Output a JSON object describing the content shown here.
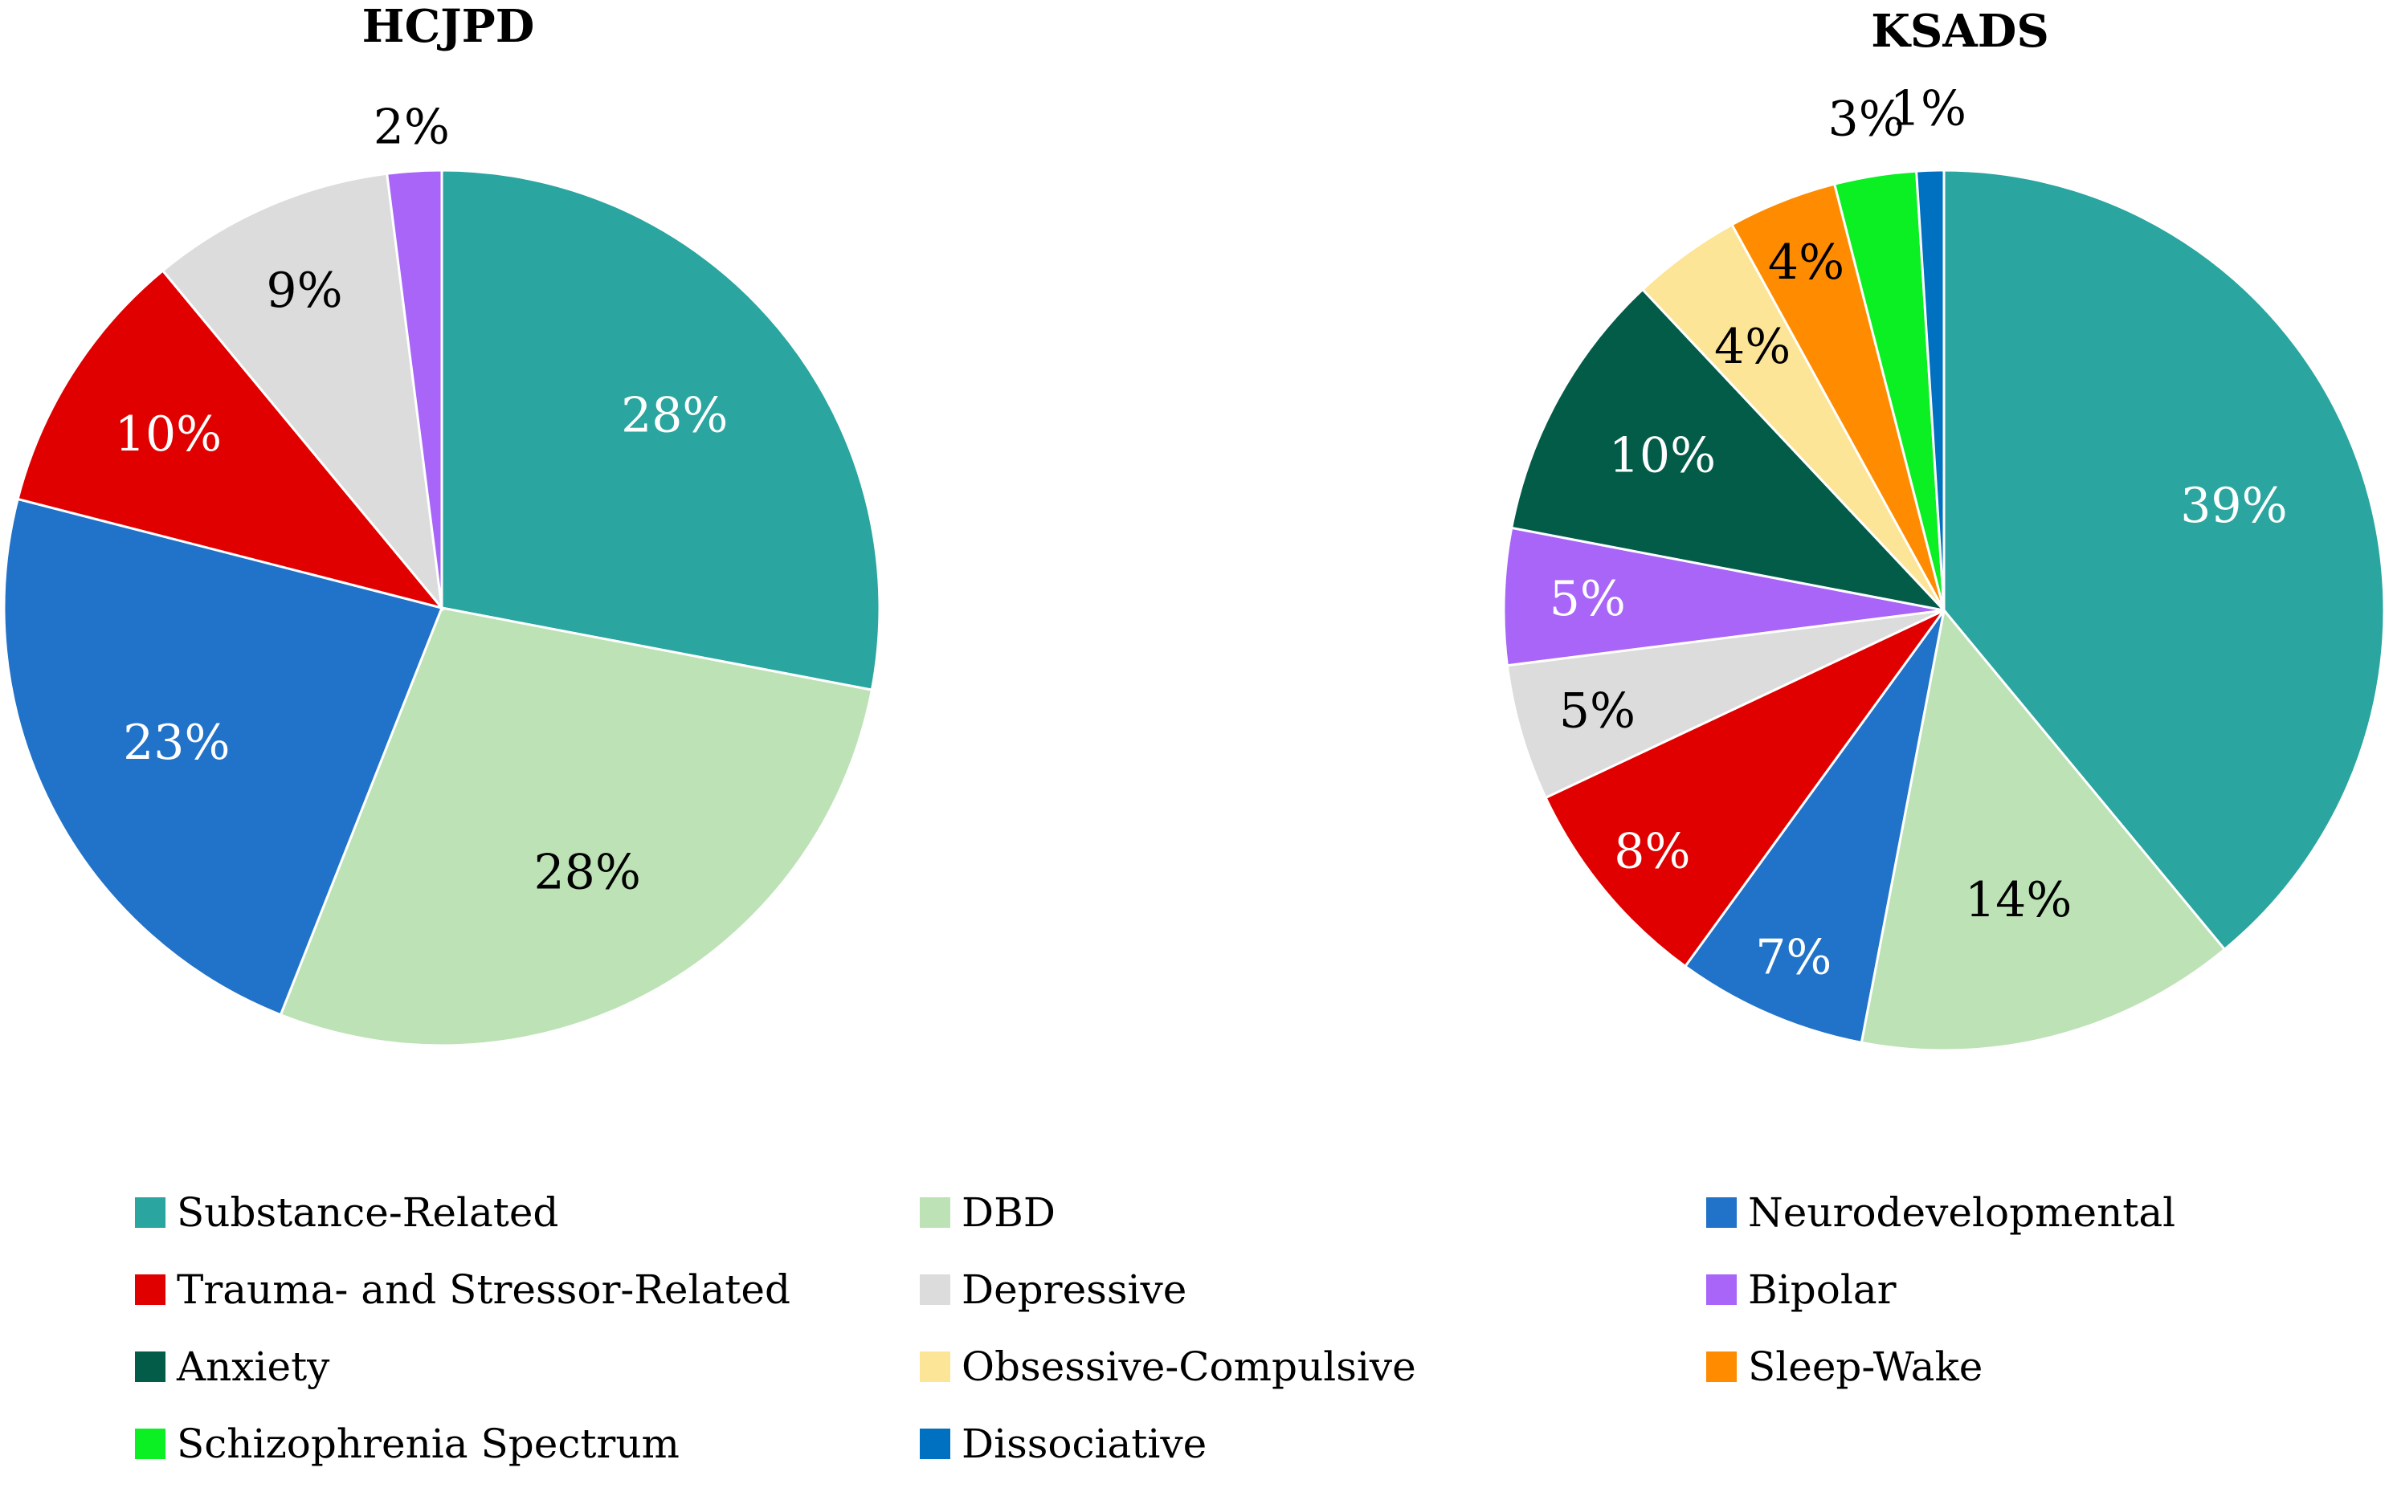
{
  "chart_data": [
    {
      "type": "pie",
      "title": "HCJPD",
      "slices": [
        {
          "category": "Substance-Related",
          "value": 28,
          "label": "28%"
        },
        {
          "category": "DBD",
          "value": 28,
          "label": "28%"
        },
        {
          "category": "Neurodevelopmental",
          "value": 23,
          "label": "23%"
        },
        {
          "category": "Trauma- and Stressor-Related",
          "value": 10,
          "label": "10%"
        },
        {
          "category": "Depressive",
          "value": 9,
          "label": "9%"
        },
        {
          "category": "Bipolar",
          "value": 2,
          "label": "2%"
        }
      ]
    },
    {
      "type": "pie",
      "title": "KSADS",
      "slices": [
        {
          "category": "Substance-Related",
          "value": 39,
          "label": "39%"
        },
        {
          "category": "DBD",
          "value": 14,
          "label": "14%"
        },
        {
          "category": "Neurodevelopmental",
          "value": 7,
          "label": "7%"
        },
        {
          "category": "Trauma- and Stressor-Related",
          "value": 8,
          "label": "8%"
        },
        {
          "category": "Depressive",
          "value": 5,
          "label": "5%"
        },
        {
          "category": "Bipolar",
          "value": 5,
          "label": "5%"
        },
        {
          "category": "Anxiety",
          "value": 10,
          "label": "10%"
        },
        {
          "category": "Obsessive-Compulsive",
          "value": 4,
          "label": "4%"
        },
        {
          "category": "Sleep-Wake",
          "value": 4,
          "label": "4%"
        },
        {
          "category": "Schizophrenia Spectrum",
          "value": 3,
          "label": "3%"
        },
        {
          "category": "Dissociative",
          "value": 1,
          "label": "1%"
        }
      ]
    }
  ],
  "legend": {
    "placement": "bottom",
    "items": [
      {
        "name": "Substance-Related",
        "color": "#2aa59f"
      },
      {
        "name": "DBD",
        "color": "#bde2b6"
      },
      {
        "name": "Neurodevelopmental",
        "color": "#2172c9"
      },
      {
        "name": "Trauma- and Stressor-Related",
        "color": "#e10000"
      },
      {
        "name": "Depressive",
        "color": "#dcdcdc"
      },
      {
        "name": "Bipolar",
        "color": "#a865f8"
      },
      {
        "name": "Anxiety",
        "color": "#035c48"
      },
      {
        "name": "Obsessive-Compulsive",
        "color": "#fde597"
      },
      {
        "name": "Sleep-Wake",
        "color": "#ff8c00"
      },
      {
        "name": "Schizophrenia Spectrum",
        "color": "#0af022"
      },
      {
        "name": "Dissociative",
        "color": "#0070c0"
      }
    ]
  },
  "label_colors": {
    "on_dark": "#ffffff",
    "on_light": "#000000"
  }
}
